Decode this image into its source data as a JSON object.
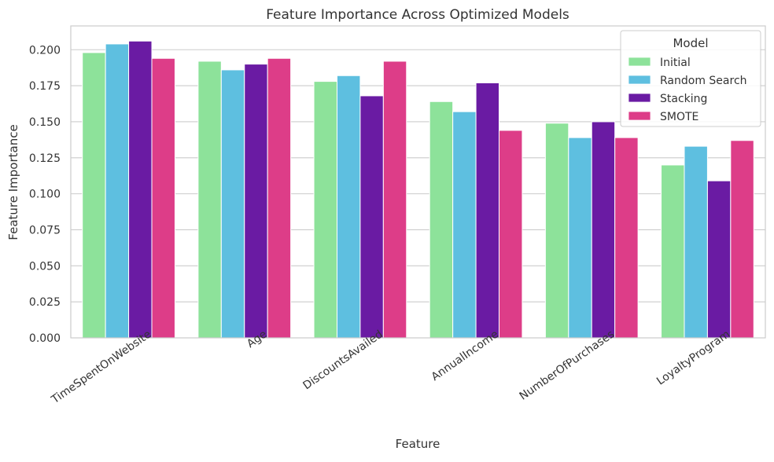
{
  "chart_data": {
    "type": "bar",
    "title": "Feature Importance Across Optimized Models",
    "xlabel": "Feature",
    "ylabel": "Feature Importance",
    "categories": [
      "TimeSpentOnWebsite",
      "Age",
      "DiscountsAvailed",
      "AnnualIncome",
      "NumberOfPurchases",
      "LoyaltyProgram"
    ],
    "series": [
      {
        "name": "Initial",
        "color": "#8de29a",
        "values": [
          0.198,
          0.192,
          0.178,
          0.164,
          0.149,
          0.12
        ]
      },
      {
        "name": "Random Search",
        "color": "#5ebfe0",
        "values": [
          0.204,
          0.186,
          0.182,
          0.157,
          0.139,
          0.133
        ]
      },
      {
        "name": "Stacking",
        "color": "#6a1ba3",
        "values": [
          0.206,
          0.19,
          0.168,
          0.177,
          0.15,
          0.109
        ]
      },
      {
        "name": "SMOTE",
        "color": "#dd3d88",
        "values": [
          0.194,
          0.194,
          0.192,
          0.144,
          0.139,
          0.137
        ]
      }
    ],
    "ylim": [
      0,
      0.2165
    ],
    "yticks": [
      "0.000",
      "0.025",
      "0.050",
      "0.075",
      "0.100",
      "0.125",
      "0.150",
      "0.175",
      "0.200"
    ],
    "grid": true,
    "legend": {
      "title": "Model",
      "position": "top-right"
    }
  }
}
